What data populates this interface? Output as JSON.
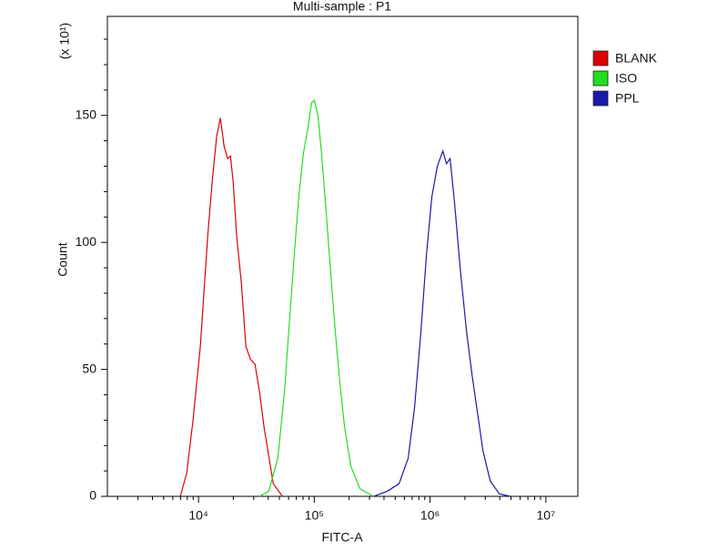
{
  "chart_data": {
    "type": "line",
    "title": "Multi-sample : P1",
    "x_label": "FITC-A",
    "y_label": "Count",
    "y_multiplier": "(x 10¹)",
    "xscale": "log",
    "xlim": [
      1633,
      18900000
    ],
    "xticks": [
      {
        "value": 10000,
        "label": "10⁴"
      },
      {
        "value": 100000,
        "label": "10⁵"
      },
      {
        "value": 1000000,
        "label": "10⁶"
      },
      {
        "value": 10000000,
        "label": "10⁷"
      }
    ],
    "x_minor_ticks": [
      2000,
      3000,
      4000,
      5000,
      6000,
      7000,
      8000,
      9000,
      20000,
      30000,
      40000,
      50000,
      60000,
      70000,
      80000,
      90000,
      200000,
      300000,
      400000,
      500000,
      600000,
      700000,
      800000,
      900000,
      2000000,
      3000000,
      4000000,
      5000000,
      6000000,
      7000000,
      8000000,
      9000000
    ],
    "ylim": [
      0,
      189
    ],
    "yticks": [
      0,
      50,
      100,
      150
    ],
    "y_minor_ticks": [
      10,
      20,
      30,
      40,
      60,
      70,
      80,
      90,
      110,
      120,
      130,
      140,
      160,
      170,
      180
    ],
    "legend": "right",
    "series": [
      {
        "name": "BLANK",
        "color": "#dd0000",
        "x": [
          6960,
          7900,
          8970,
          10370,
          11990,
          13130,
          14370,
          15450,
          16620,
          17870,
          18870,
          19920,
          21410,
          23450,
          25670,
          28110,
          30770,
          33700,
          36890,
          40400,
          44230,
          53020
        ],
        "values": [
          0,
          9,
          30,
          59,
          102,
          124,
          142,
          149,
          138,
          133,
          134,
          124,
          102,
          84,
          59,
          54,
          52,
          41,
          27,
          16,
          5,
          0
        ]
      },
      {
        "name": "ISO",
        "color": "#22dd22",
        "x": [
          33700,
          40400,
          48420,
          54990,
          61310,
          67120,
          73480,
          80450,
          88090,
          94710,
          100000,
          107520,
          115610,
          126590,
          138570,
          151740,
          166150,
          181900,
          206540,
          247570,
          324920
        ],
        "values": [
          0,
          2,
          15,
          40,
          70,
          95,
          118,
          135,
          145,
          155,
          156,
          150,
          135,
          112,
          88,
          65,
          45,
          28,
          12,
          3,
          0
        ]
      },
      {
        "name": "PPL",
        "color": "#1a1aa8",
        "x": [
          324920,
          426500,
          539900,
          647100,
          734800,
          834300,
          930100,
          1036800,
          1156100,
          1289000,
          1386000,
          1490000,
          1632000,
          1819000,
          2065000,
          2302000,
          2567000,
          2862000,
          3310000,
          3966000,
          4932000
        ],
        "values": [
          0,
          2,
          5,
          15,
          35,
          65,
          95,
          118,
          130,
          136,
          131,
          133,
          115,
          90,
          65,
          48,
          33,
          18,
          6,
          1,
          0
        ]
      }
    ]
  }
}
